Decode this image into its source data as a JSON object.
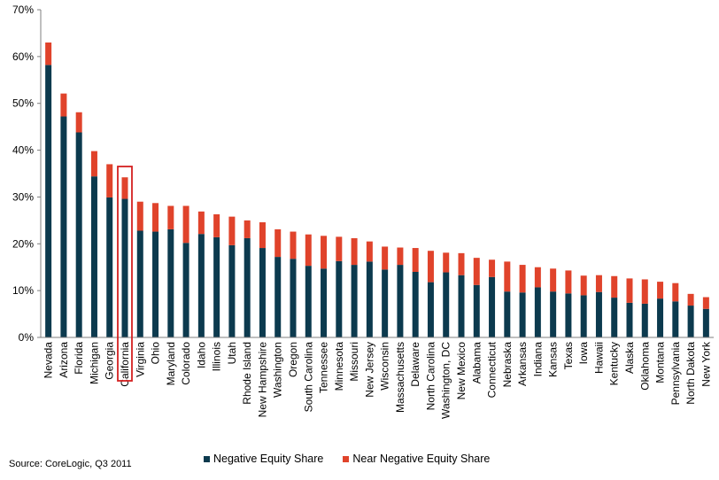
{
  "source": "Source: CoreLogic, Q3 2011",
  "colors": {
    "negative": "#0c3a4e",
    "near": "#e0432b",
    "highlight": "#d42020",
    "axis": "#7f7f7f"
  },
  "legend": {
    "negative_label": "Negative Equity Share",
    "near_label": "Near Negative Equity Share"
  },
  "chart_data": {
    "type": "bar",
    "stacked": true,
    "title": "",
    "xlabel": "",
    "ylabel": "",
    "ylim": [
      0,
      70
    ],
    "yticks": [
      "0%",
      "10%",
      "20%",
      "30%",
      "40%",
      "50%",
      "60%",
      "70%"
    ],
    "highlighted_category": "California",
    "categories": [
      "Nevada",
      "Arizona",
      "Florida",
      "Michigan",
      "Georgia",
      "California",
      "Virginia",
      "Ohio",
      "Maryland",
      "Colorado",
      "Idaho",
      "Illinois",
      "Utah",
      "Rhode Island",
      "New Hampshire",
      "Washington",
      "Oregon",
      "South Carolina",
      "Tennessee",
      "Minnesota",
      "Missouri",
      "New Jersey",
      "Wisconsin",
      "Massachusetts",
      "Delaware",
      "North Carolina",
      "Washington, DC",
      "New Mexico",
      "Alabama",
      "Connecticut",
      "Nebraska",
      "Arkansas",
      "Indiana",
      "Kansas",
      "Texas",
      "Iowa",
      "Hawaii",
      "Kentucky",
      "Alaska",
      "Oklahoma",
      "Montana",
      "Pennsylvania",
      "North Dakota",
      "New York"
    ],
    "series": [
      {
        "name": "Negative Equity Share",
        "values": [
          58.2,
          47.2,
          43.8,
          34.4,
          29.9,
          29.6,
          22.8,
          22.6,
          23.1,
          20.2,
          22.1,
          21.4,
          19.7,
          21.2,
          19.1,
          17.2,
          16.8,
          15.3,
          14.7,
          16.3,
          15.5,
          16.2,
          14.5,
          15.5,
          14.0,
          11.8,
          13.9,
          13.3,
          11.2,
          12.9,
          9.8,
          9.6,
          10.7,
          9.8,
          9.4,
          9.0,
          9.7,
          8.5,
          7.4,
          7.2,
          8.3,
          7.7,
          6.8,
          6.1
        ]
      },
      {
        "name": "Near Negative Equity Share",
        "values": [
          4.8,
          4.9,
          4.3,
          5.4,
          7.1,
          4.6,
          6.2,
          6.1,
          5.0,
          7.9,
          4.8,
          4.9,
          6.1,
          3.8,
          5.5,
          5.9,
          5.8,
          6.7,
          7.0,
          5.2,
          5.7,
          4.3,
          4.9,
          3.7,
          5.1,
          6.7,
          4.2,
          4.7,
          5.8,
          3.7,
          6.4,
          5.9,
          4.3,
          4.9,
          4.9,
          4.2,
          3.6,
          4.6,
          5.2,
          5.2,
          3.6,
          3.9,
          2.5,
          2.5
        ]
      }
    ]
  }
}
